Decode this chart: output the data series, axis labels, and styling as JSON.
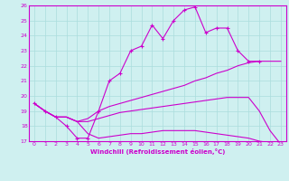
{
  "title": "",
  "xlabel": "Windchill (Refroidissement éolien,°C)",
  "bg_color": "#cff0f0",
  "line_color": "#cc00cc",
  "grid_color": "#aadddd",
  "xlim": [
    -0.5,
    23.5
  ],
  "ylim": [
    17,
    26
  ],
  "yticks": [
    17,
    18,
    19,
    20,
    21,
    22,
    23,
    24,
    25,
    26
  ],
  "xticks": [
    0,
    1,
    2,
    3,
    4,
    5,
    6,
    7,
    8,
    9,
    10,
    11,
    12,
    13,
    14,
    15,
    16,
    17,
    18,
    19,
    20,
    21,
    22,
    23
  ],
  "line1_x": [
    0,
    1,
    2,
    3,
    4,
    5,
    6,
    7,
    8,
    9,
    10,
    11,
    12,
    13,
    14,
    15,
    16,
    17,
    18,
    19,
    20,
    21
  ],
  "line1_y": [
    19.5,
    19.0,
    18.6,
    18.0,
    17.2,
    17.2,
    19.0,
    21.0,
    21.5,
    23.0,
    23.3,
    24.7,
    23.8,
    25.0,
    25.7,
    25.9,
    24.2,
    24.5,
    24.5,
    23.0,
    22.3,
    22.3
  ],
  "line2_x": [
    0,
    1,
    2,
    3,
    4,
    5,
    6,
    7,
    8,
    9,
    10,
    11,
    12,
    13,
    14,
    15,
    16,
    17,
    18,
    19,
    20,
    21,
    22,
    23
  ],
  "line2_y": [
    19.5,
    19.0,
    18.6,
    18.6,
    18.3,
    18.5,
    19.0,
    19.3,
    19.5,
    19.7,
    19.9,
    20.1,
    20.3,
    20.5,
    20.7,
    21.0,
    21.2,
    21.5,
    21.7,
    22.0,
    22.2,
    22.3,
    22.3,
    22.3
  ],
  "line3_x": [
    0,
    1,
    2,
    3,
    4,
    5,
    6,
    7,
    8,
    9,
    10,
    11,
    12,
    13,
    14,
    15,
    16,
    17,
    18,
    19,
    20,
    21,
    22,
    23
  ],
  "line3_y": [
    19.5,
    19.0,
    18.6,
    18.6,
    18.3,
    18.3,
    18.5,
    18.7,
    18.9,
    19.0,
    19.1,
    19.2,
    19.3,
    19.4,
    19.5,
    19.6,
    19.7,
    19.8,
    19.9,
    19.9,
    19.9,
    19.0,
    17.7,
    16.8
  ],
  "line4_x": [
    0,
    1,
    2,
    3,
    4,
    5,
    6,
    7,
    8,
    9,
    10,
    11,
    12,
    13,
    14,
    15,
    16,
    17,
    18,
    19,
    20,
    21,
    22,
    23
  ],
  "line4_y": [
    19.5,
    19.0,
    18.6,
    18.6,
    18.3,
    17.5,
    17.2,
    17.3,
    17.4,
    17.5,
    17.5,
    17.6,
    17.7,
    17.7,
    17.7,
    17.7,
    17.6,
    17.5,
    17.4,
    17.3,
    17.2,
    17.0,
    16.9,
    16.8
  ]
}
